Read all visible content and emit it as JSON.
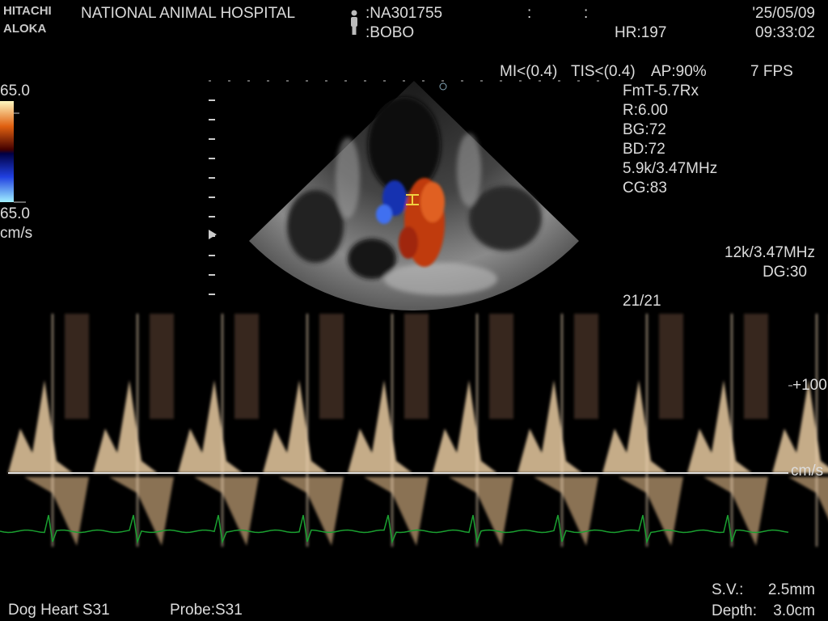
{
  "header": {
    "brand_top": "HITACHI",
    "brand_bottom": "ALOKA",
    "hospital": "NATIONAL  ANIMAL HOSPITAL",
    "patient_id": ":NA301755",
    "patient_name": ":BOBO",
    "sep_1": ":",
    "sep_2": ":",
    "heart_rate": "HR:197",
    "date": "'25/05/09",
    "time": "09:33:02"
  },
  "acoustic": {
    "mi": "MI<(0.4)",
    "tis": "TIS<(0.4)",
    "ap": "AP:90%",
    "fps": "7 FPS"
  },
  "parameters": [
    "FmT-5.7Rx",
    "R:6.00",
    "BG:72",
    "BD:72",
    "5.9k/3.47MHz",
    "CG:83"
  ],
  "color_scale": {
    "top": "65.0",
    "bottom": "65.0",
    "unit": "cm/s"
  },
  "doppler_settings": {
    "prf": "12k/3.47MHz",
    "gain": "DG:30",
    "frame": "21/21"
  },
  "doppler_scale": {
    "mark": "+100",
    "unit": "cm/s"
  },
  "footer": {
    "sv_label": "S.V.:",
    "sv_value": "2.5mm",
    "depth_label": "Depth:",
    "depth_value": "3.0cm",
    "preset": "Dog Heart S31",
    "probe": "Probe:S31"
  }
}
